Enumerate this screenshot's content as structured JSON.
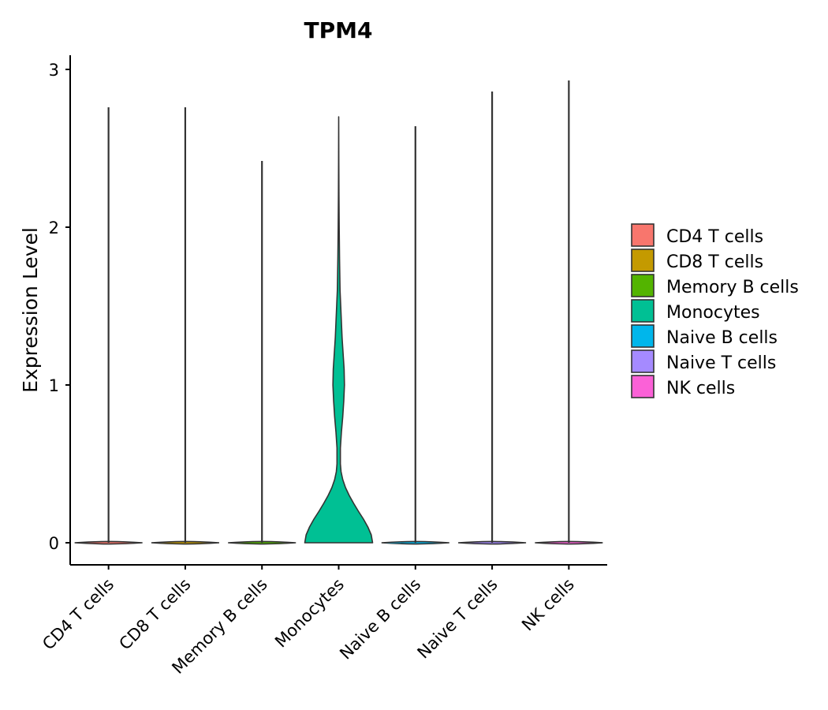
{
  "chart_data": {
    "type": "violin",
    "title": "TPM4",
    "xlabel": "",
    "ylabel": "Expression Level",
    "ylim": [
      -0.14,
      3.08
    ],
    "yticks": [
      0,
      1,
      2,
      3
    ],
    "categories": [
      "CD4 T cells",
      "CD8 T cells",
      "Memory B cells",
      "Monocytes",
      "Naive B cells",
      "Naive T cells",
      "NK cells"
    ],
    "colors": [
      "#F8766D",
      "#C49A00",
      "#53B400",
      "#00C094",
      "#00B6EB",
      "#A58AFF",
      "#FB61D7"
    ],
    "max_values": [
      2.76,
      2.76,
      2.42,
      2.7,
      2.64,
      2.86,
      2.93
    ],
    "monocytes_density_profile": [
      {
        "y": 0.0,
        "w": 1.0
      },
      {
        "y": 0.05,
        "w": 0.96
      },
      {
        "y": 0.1,
        "w": 0.86
      },
      {
        "y": 0.15,
        "w": 0.73
      },
      {
        "y": 0.2,
        "w": 0.58
      },
      {
        "y": 0.25,
        "w": 0.44
      },
      {
        "y": 0.3,
        "w": 0.31
      },
      {
        "y": 0.35,
        "w": 0.2
      },
      {
        "y": 0.4,
        "w": 0.12
      },
      {
        "y": 0.45,
        "w": 0.07
      },
      {
        "y": 0.5,
        "w": 0.05
      },
      {
        "y": 0.6,
        "w": 0.05
      },
      {
        "y": 0.7,
        "w": 0.08
      },
      {
        "y": 0.8,
        "w": 0.12
      },
      {
        "y": 0.9,
        "w": 0.15
      },
      {
        "y": 1.0,
        "w": 0.17
      },
      {
        "y": 1.1,
        "w": 0.16
      },
      {
        "y": 1.2,
        "w": 0.13
      },
      {
        "y": 1.3,
        "w": 0.1
      },
      {
        "y": 1.4,
        "w": 0.08
      },
      {
        "y": 1.5,
        "w": 0.06
      },
      {
        "y": 1.6,
        "w": 0.04
      },
      {
        "y": 1.8,
        "w": 0.025
      },
      {
        "y": 2.0,
        "w": 0.015
      },
      {
        "y": 2.2,
        "w": 0.008
      },
      {
        "y": 2.4,
        "w": 0.004
      },
      {
        "y": 2.7,
        "w": 0.0
      }
    ],
    "legend": {
      "position": "right",
      "entries": [
        "CD4 T cells",
        "CD8 T cells",
        "Memory B cells",
        "Monocytes",
        "Naive B cells",
        "Naive T cells",
        "NK cells"
      ]
    }
  }
}
